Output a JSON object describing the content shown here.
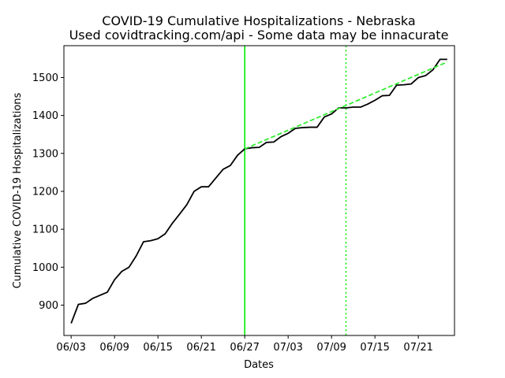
{
  "chart_data": {
    "type": "line",
    "title": "COVID-19 Cumulative Hospitalizations - Nebraska",
    "subtitle": "Used covidtracking.com/api - Some data may be innacurate",
    "xlabel": "Dates",
    "ylabel": "Cumulative COVID-19 Hospitalizations",
    "x_tick_labels": [
      "06/03",
      "06/09",
      "06/15",
      "06/21",
      "06/27",
      "07/03",
      "07/09",
      "07/15",
      "07/21"
    ],
    "y_tick_labels": [
      "900",
      "1000",
      "1100",
      "1200",
      "1300",
      "1400",
      "1500"
    ],
    "ylim": [
      820,
      1584
    ],
    "x_start_date": "06/02",
    "x_end_date": "07/26",
    "grid": false,
    "series": [
      {
        "color": "#000000",
        "style": "solid",
        "x": [
          "06/03",
          "06/04",
          "06/05",
          "06/06",
          "06/07",
          "06/08",
          "06/09",
          "06/10",
          "06/11",
          "06/12",
          "06/13",
          "06/14",
          "06/15",
          "06/16",
          "06/17",
          "06/18",
          "06/19",
          "06/20",
          "06/21",
          "06/22",
          "06/23",
          "06/24",
          "06/25",
          "06/26",
          "06/27",
          "06/28",
          "06/29",
          "06/30",
          "07/01",
          "07/02",
          "07/03",
          "07/04",
          "07/05",
          "07/06",
          "07/07",
          "07/08",
          "07/09",
          "07/10",
          "07/11",
          "07/12",
          "07/13",
          "07/14",
          "07/15",
          "07/16",
          "07/17",
          "07/18",
          "07/19",
          "07/20",
          "07/21",
          "07/22",
          "07/23",
          "07/24",
          "07/25"
        ],
        "values": [
          852,
          902,
          905,
          918,
          926,
          934,
          967,
          989,
          1000,
          1030,
          1067,
          1070,
          1075,
          1088,
          1116,
          1140,
          1165,
          1200,
          1212,
          1212,
          1235,
          1258,
          1268,
          1295,
          1312,
          1315,
          1316,
          1329,
          1330,
          1344,
          1353,
          1366,
          1368,
          1369,
          1369,
          1396,
          1404,
          1420,
          1420,
          1422,
          1422,
          1430,
          1440,
          1452,
          1453,
          1480,
          1481,
          1483,
          1500,
          1505,
          1520,
          1548,
          1548
        ]
      },
      {
        "color": "#33ee33",
        "style": "dashed",
        "x": [
          "06/27",
          "07/25"
        ],
        "values": [
          1312,
          1541
        ]
      }
    ],
    "vertical_lines": [
      {
        "x": "06/27",
        "color": "#00ee00",
        "style": "solid"
      },
      {
        "x": "07/11",
        "color": "#00ee00",
        "style": "dotted"
      }
    ]
  }
}
